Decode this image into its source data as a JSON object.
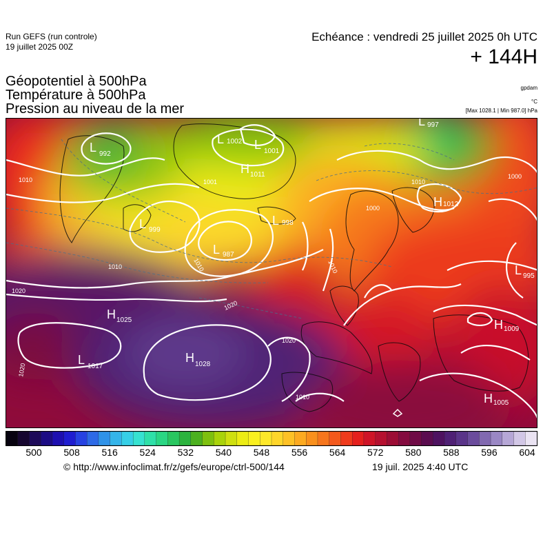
{
  "header": {
    "run_title": "Run GEFS (run controle)",
    "run_date": "19 juillet 2025 00Z",
    "valid_time": "Echéance : vendredi 25 juillet 2025 0h UTC",
    "lead_time": "+ 144H"
  },
  "parameters": [
    "Géopotentiel à 500hPa",
    "Température à 500hPa",
    "Pression au niveau de la mer"
  ],
  "units": {
    "geopotential": "gpdam",
    "temperature": "°C",
    "pressure_range": "[Max 1028.1 | Min 987.0] hPa"
  },
  "map": {
    "pressure_centers": [
      {
        "type": "L",
        "value": "992"
      },
      {
        "type": "L",
        "value": "1002"
      },
      {
        "type": "L",
        "value": "1001"
      },
      {
        "type": "H",
        "value": "1011"
      },
      {
        "type": "L",
        "value": "997"
      },
      {
        "type": "H",
        "value": "1012"
      },
      {
        "type": "L",
        "value": "999"
      },
      {
        "type": "L",
        "value": "987"
      },
      {
        "type": "L",
        "value": "998"
      },
      {
        "type": "H",
        "value": "1025"
      },
      {
        "type": "L",
        "value": "1017"
      },
      {
        "type": "H",
        "value": "1028"
      },
      {
        "type": "L",
        "value": "995"
      },
      {
        "type": "H",
        "value": "1009"
      },
      {
        "type": "H",
        "value": "1005"
      }
    ],
    "isobar_labels": [
      "1010",
      "1001",
      "1000",
      "1010",
      "1010",
      "1020",
      "1020",
      "1020",
      "1010",
      "1010",
      "1000",
      "1020",
      "1010"
    ]
  },
  "color_scale": {
    "tick_labels": [
      "500",
      "508",
      "516",
      "524",
      "532",
      "540",
      "548",
      "556",
      "564",
      "572",
      "580",
      "588",
      "596",
      "604"
    ],
    "colors": [
      "#07020f",
      "#16062f",
      "#1d0a59",
      "#1c0c84",
      "#1d0fb0",
      "#1f1dd0",
      "#2742e2",
      "#2e6ae6",
      "#2f92e8",
      "#34b4e9",
      "#36cfe6",
      "#36e2d0",
      "#2fe0a8",
      "#2ad683",
      "#29c660",
      "#2cb33e",
      "#4cb01f",
      "#7ec00f",
      "#a9d30a",
      "#cfe010",
      "#ecec14",
      "#faf020",
      "#fde82a",
      "#fed62b",
      "#fdc126",
      "#fcaa21",
      "#f9901d",
      "#f6761d",
      "#f3591c",
      "#ef3b1c",
      "#e5201d",
      "#cf1427",
      "#b5102f",
      "#9c0d35",
      "#840b3f",
      "#6f0a46",
      "#5b0c4f",
      "#4e1260",
      "#4f2075",
      "#5a3489",
      "#6b4c9c",
      "#8169b0",
      "#9a87c4",
      "#b6a7d6",
      "#d2c7e6",
      "#eae3f2"
    ]
  },
  "footer": {
    "url": "© http://www.infoclimat.fr/z/gefs/europe/ctrl-500/144",
    "timestamp": "19 juil. 2025  4:40 UTC"
  }
}
